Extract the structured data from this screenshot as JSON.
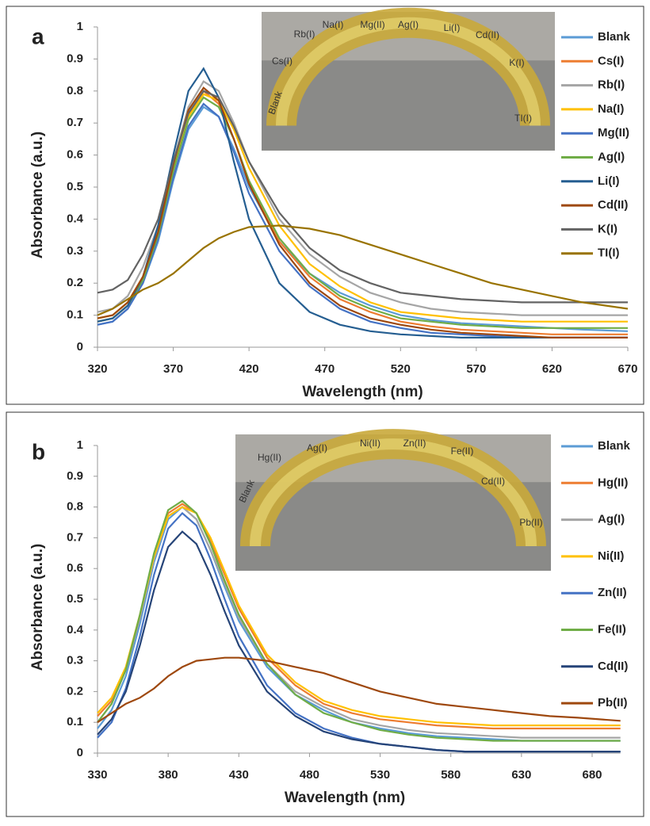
{
  "chart_data": [
    {
      "type": "line",
      "title": "a",
      "x_label": "Wavelength (nm)",
      "y_label": "Absorbance (a.u.)",
      "x": [
        320,
        330,
        340,
        350,
        360,
        370,
        380,
        390,
        400,
        410,
        420,
        440,
        460,
        480,
        500,
        520,
        540,
        560,
        580,
        600,
        620,
        640,
        670
      ],
      "xlim": [
        320,
        670
      ],
      "xticks": [
        320,
        370,
        420,
        470,
        520,
        570,
        620,
        670
      ],
      "ylim": [
        0,
        1
      ],
      "yticks": [
        0,
        0.1,
        0.2,
        0.3,
        0.4,
        0.5,
        0.6,
        0.7,
        0.8,
        0.9,
        1
      ],
      "inset_labels": [
        "Blank",
        "Cs(I)",
        "Rb(I)",
        "Na(I)",
        "Mg(II)",
        "Ag(I)",
        "Li(I)",
        "Cd(II)",
        "K(I)",
        "TI(I)"
      ],
      "series": [
        {
          "name": "Blank",
          "color": "#5b9bd5",
          "values": [
            0.07,
            0.08,
            0.12,
            0.2,
            0.33,
            0.52,
            0.68,
            0.75,
            0.72,
            0.62,
            0.5,
            0.33,
            0.23,
            0.17,
            0.13,
            0.1,
            0.085,
            0.075,
            0.07,
            0.065,
            0.06,
            0.055,
            0.05
          ]
        },
        {
          "name": "Cs(I)",
          "color": "#ed7d31",
          "values": [
            0.08,
            0.09,
            0.13,
            0.21,
            0.35,
            0.55,
            0.72,
            0.8,
            0.76,
            0.65,
            0.52,
            0.33,
            0.22,
            0.15,
            0.11,
            0.08,
            0.065,
            0.055,
            0.05,
            0.045,
            0.04,
            0.04,
            0.04
          ]
        },
        {
          "name": "Rb(I)",
          "color": "#a5a5a5",
          "values": [
            0.11,
            0.12,
            0.16,
            0.25,
            0.38,
            0.58,
            0.75,
            0.83,
            0.8,
            0.7,
            0.58,
            0.4,
            0.29,
            0.22,
            0.17,
            0.14,
            0.12,
            0.11,
            0.105,
            0.1,
            0.1,
            0.1,
            0.1
          ]
        },
        {
          "name": "Na(I)",
          "color": "#ffc000",
          "values": [
            0.09,
            0.1,
            0.14,
            0.22,
            0.36,
            0.56,
            0.72,
            0.79,
            0.77,
            0.68,
            0.56,
            0.38,
            0.26,
            0.19,
            0.14,
            0.11,
            0.1,
            0.09,
            0.085,
            0.08,
            0.08,
            0.08,
            0.08
          ]
        },
        {
          "name": "Mg(II)",
          "color": "#4472c4",
          "values": [
            0.07,
            0.08,
            0.12,
            0.2,
            0.34,
            0.53,
            0.69,
            0.76,
            0.72,
            0.61,
            0.48,
            0.3,
            0.19,
            0.12,
            0.08,
            0.06,
            0.045,
            0.04,
            0.035,
            0.03,
            0.03,
            0.03,
            0.03
          ]
        },
        {
          "name": "Ag(I)",
          "color": "#70ad47",
          "values": [
            0.08,
            0.09,
            0.13,
            0.21,
            0.35,
            0.55,
            0.71,
            0.78,
            0.75,
            0.65,
            0.52,
            0.34,
            0.23,
            0.16,
            0.12,
            0.09,
            0.08,
            0.07,
            0.065,
            0.06,
            0.06,
            0.06,
            0.06
          ]
        },
        {
          "name": "Li(I)",
          "color": "#255e91",
          "values": [
            0.08,
            0.09,
            0.13,
            0.22,
            0.38,
            0.6,
            0.8,
            0.87,
            0.78,
            0.58,
            0.4,
            0.2,
            0.11,
            0.07,
            0.05,
            0.04,
            0.035,
            0.03,
            0.03,
            0.03,
            0.03,
            0.03,
            0.03
          ]
        },
        {
          "name": "Cd(II)",
          "color": "#9e480e",
          "values": [
            0.09,
            0.1,
            0.14,
            0.22,
            0.36,
            0.57,
            0.74,
            0.81,
            0.77,
            0.65,
            0.51,
            0.32,
            0.2,
            0.13,
            0.09,
            0.07,
            0.055,
            0.045,
            0.04,
            0.035,
            0.03,
            0.03,
            0.03
          ]
        },
        {
          "name": "K(I)",
          "color": "#636363",
          "values": [
            0.17,
            0.18,
            0.21,
            0.29,
            0.4,
            0.58,
            0.73,
            0.8,
            0.78,
            0.69,
            0.58,
            0.42,
            0.31,
            0.24,
            0.2,
            0.17,
            0.16,
            0.15,
            0.145,
            0.14,
            0.14,
            0.14,
            0.14
          ]
        },
        {
          "name": "TI(I)",
          "color": "#997300",
          "values": [
            0.1,
            0.12,
            0.15,
            0.18,
            0.2,
            0.23,
            0.27,
            0.31,
            0.34,
            0.36,
            0.375,
            0.38,
            0.37,
            0.35,
            0.32,
            0.29,
            0.26,
            0.23,
            0.2,
            0.18,
            0.16,
            0.14,
            0.12
          ]
        }
      ]
    },
    {
      "type": "line",
      "title": "b",
      "x_label": "Wavelength (nm)",
      "y_label": "Absorbance (a.u.)",
      "x": [
        330,
        340,
        350,
        360,
        370,
        380,
        390,
        400,
        410,
        420,
        430,
        450,
        470,
        490,
        510,
        530,
        550,
        570,
        590,
        610,
        630,
        650,
        670,
        700
      ],
      "xlim": [
        330,
        700
      ],
      "xticks": [
        330,
        380,
        430,
        480,
        530,
        580,
        630,
        680
      ],
      "ylim": [
        0,
        1
      ],
      "yticks": [
        0,
        0.1,
        0.2,
        0.3,
        0.4,
        0.5,
        0.6,
        0.7,
        0.8,
        0.9,
        1
      ],
      "inset_labels": [
        "Blank",
        "Hg(II)",
        "Ag(I)",
        "Ni(II)",
        "Zn(II)",
        "Fe(II)",
        "Cd(II)",
        "Pb(II)"
      ],
      "series": [
        {
          "name": "Blank",
          "color": "#5b9bd5",
          "values": [
            0.08,
            0.14,
            0.25,
            0.42,
            0.62,
            0.76,
            0.8,
            0.76,
            0.66,
            0.54,
            0.43,
            0.28,
            0.19,
            0.14,
            0.1,
            0.08,
            0.065,
            0.055,
            0.05,
            0.045,
            0.04,
            0.04,
            0.04,
            0.04
          ]
        },
        {
          "name": "Hg(II)",
          "color": "#ed7d31",
          "values": [
            0.12,
            0.17,
            0.27,
            0.44,
            0.64,
            0.78,
            0.81,
            0.78,
            0.69,
            0.58,
            0.47,
            0.31,
            0.22,
            0.16,
            0.13,
            0.11,
            0.1,
            0.09,
            0.085,
            0.08,
            0.08,
            0.08,
            0.08,
            0.08
          ]
        },
        {
          "name": "Ag(I)",
          "color": "#a5a5a5",
          "values": [
            0.1,
            0.16,
            0.27,
            0.44,
            0.63,
            0.77,
            0.8,
            0.76,
            0.66,
            0.55,
            0.44,
            0.29,
            0.2,
            0.15,
            0.11,
            0.09,
            0.075,
            0.065,
            0.06,
            0.055,
            0.05,
            0.05,
            0.05,
            0.05
          ]
        },
        {
          "name": "Ni(II)",
          "color": "#ffc000",
          "values": [
            0.13,
            0.18,
            0.28,
            0.45,
            0.64,
            0.77,
            0.8,
            0.78,
            0.7,
            0.59,
            0.48,
            0.32,
            0.23,
            0.17,
            0.14,
            0.12,
            0.11,
            0.1,
            0.095,
            0.09,
            0.09,
            0.09,
            0.09,
            0.09
          ]
        },
        {
          "name": "Zn(II)",
          "color": "#4472c4",
          "values": [
            0.05,
            0.1,
            0.21,
            0.38,
            0.58,
            0.73,
            0.78,
            0.74,
            0.63,
            0.5,
            0.38,
            0.22,
            0.13,
            0.08,
            0.05,
            0.03,
            0.02,
            0.01,
            0.005,
            0.005,
            0.005,
            0.005,
            0.005,
            0.005
          ]
        },
        {
          "name": "Fe(II)",
          "color": "#70ad47",
          "values": [
            0.1,
            0.16,
            0.27,
            0.45,
            0.65,
            0.79,
            0.82,
            0.78,
            0.68,
            0.56,
            0.45,
            0.29,
            0.19,
            0.13,
            0.1,
            0.075,
            0.06,
            0.05,
            0.045,
            0.04,
            0.04,
            0.04,
            0.04,
            0.04
          ]
        },
        {
          "name": "Cd(II)",
          "color": "#264478",
          "values": [
            0.06,
            0.11,
            0.2,
            0.35,
            0.53,
            0.67,
            0.72,
            0.68,
            0.58,
            0.46,
            0.35,
            0.2,
            0.12,
            0.07,
            0.045,
            0.03,
            0.02,
            0.01,
            0.005,
            0.005,
            0.005,
            0.005,
            0.005,
            0.005
          ]
        },
        {
          "name": "Pb(II)",
          "color": "#9e480e",
          "values": [
            0.1,
            0.13,
            0.16,
            0.18,
            0.21,
            0.25,
            0.28,
            0.3,
            0.305,
            0.31,
            0.31,
            0.3,
            0.28,
            0.26,
            0.23,
            0.2,
            0.18,
            0.16,
            0.15,
            0.14,
            0.13,
            0.12,
            0.115,
            0.105
          ]
        }
      ]
    }
  ]
}
